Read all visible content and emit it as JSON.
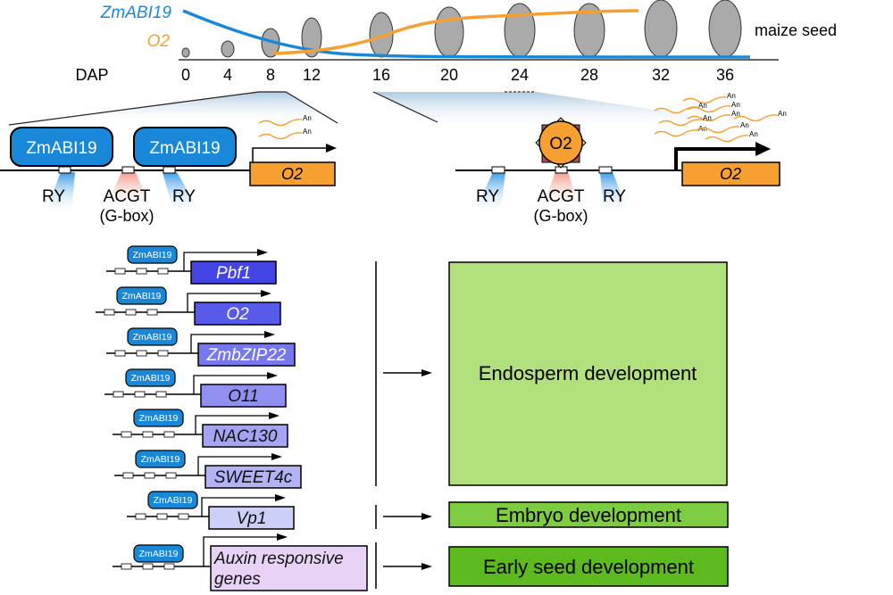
{
  "timeline": {
    "axis_label": "DAP",
    "ticks": [
      "0",
      "4",
      "8",
      "12",
      "16",
      "20",
      "24",
      "28",
      "32",
      "36"
    ],
    "seed_label": "maize seed",
    "curves": [
      {
        "name": "ZmABI19",
        "color": "#1a88d8"
      },
      {
        "name": "O2",
        "color": "#f5a030"
      }
    ]
  },
  "left_panel": {
    "binder_label": "ZmABI19",
    "sites": [
      "RY",
      "ACGT",
      "RY"
    ],
    "gbox_label": "(G-box)",
    "gene_label": "O2",
    "polyA": "An"
  },
  "right_panel": {
    "binder_label": "O2",
    "sites": [
      "RY",
      "ACGT",
      "RY"
    ],
    "gbox_label": "(G-box)",
    "gene_label": "O2",
    "polyA": "An"
  },
  "targets": {
    "binder_label": "ZmABI19",
    "genes": [
      {
        "label": "Pbf1",
        "color": "#4545e6",
        "text_color": "#ffffff"
      },
      {
        "label": "O2",
        "color": "#5a5aea",
        "text_color": "#ffffff"
      },
      {
        "label": "ZmbZIP22",
        "color": "#7878ee",
        "text_color": "#ffffff"
      },
      {
        "label": "O11",
        "color": "#9090f0",
        "text_color": "#111111"
      },
      {
        "label": "NAC130",
        "color": "#a4a4f2",
        "text_color": "#111111"
      },
      {
        "label": "SWEET4c",
        "color": "#b2b2f4",
        "text_color": "#111111"
      },
      {
        "label": "Vp1",
        "color": "#cccff8",
        "text_color": "#111111"
      },
      {
        "label": "Auxin responsive genes",
        "color": "#e8d2f6",
        "text_color": "#111111"
      }
    ]
  },
  "outcomes": [
    {
      "label": "Endosperm development",
      "color": "#b2e07c"
    },
    {
      "label": "Embryo development",
      "color": "#7ecc40"
    },
    {
      "label": "Early seed development",
      "color": "#5cba1e"
    }
  ]
}
